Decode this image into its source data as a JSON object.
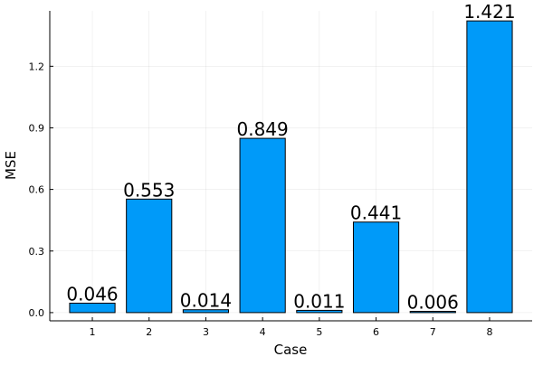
{
  "chart_data": {
    "type": "bar",
    "xlabel": "Case",
    "ylabel": "MSE",
    "categories": [
      "1",
      "2",
      "3",
      "4",
      "5",
      "6",
      "7",
      "8"
    ],
    "values": [
      0.046,
      0.553,
      0.014,
      0.849,
      0.011,
      0.441,
      0.006,
      1.421
    ],
    "data_labels": [
      "0.046",
      "0.553",
      "0.014",
      "0.849",
      "0.011",
      "0.441",
      "0.006",
      "1.421"
    ],
    "yticks": [
      "0.0",
      "0.3",
      "0.6",
      "0.9",
      "1.2"
    ],
    "ylim": [
      -0.04,
      1.47
    ],
    "xlim": [
      0.25,
      8.75
    ],
    "grid": true,
    "legend": "none",
    "bar_color": "#009AF9",
    "bar_edge_color": "#000000"
  }
}
